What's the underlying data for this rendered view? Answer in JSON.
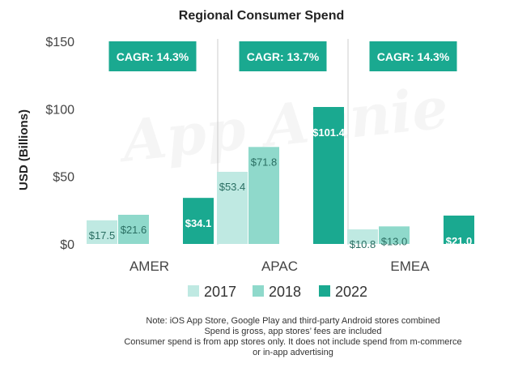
{
  "colors": {
    "2017": "#bfe9e2",
    "2018": "#8fd9cb",
    "2022": "#1aa990",
    "cagr_box": "#1aa990",
    "label_dark": "#2a6e62"
  },
  "watermark": "App Annie",
  "chart_data": {
    "type": "bar",
    "title": "Regional Consumer Spend",
    "xlabel": "",
    "ylabel": "USD (Billions)",
    "ylim": [
      0,
      150
    ],
    "yticks": [
      {
        "value": 0,
        "label": "$0"
      },
      {
        "value": 50,
        "label": "$50"
      },
      {
        "value": 100,
        "label": "$100"
      },
      {
        "value": 150,
        "label": "$150"
      }
    ],
    "categories": [
      "AMER",
      "APAC",
      "EMEA"
    ],
    "series": [
      {
        "name": "2017",
        "values": [
          17.5,
          53.4,
          10.8
        ],
        "labels": [
          "$17.5",
          "$53.4",
          "$10.8"
        ]
      },
      {
        "name": "2018",
        "values": [
          21.6,
          71.8,
          13.0
        ],
        "labels": [
          "$21.6",
          "$71.8",
          "$13.0"
        ]
      },
      {
        "name": "2022",
        "values": [
          34.1,
          101.4,
          21.0
        ],
        "labels": [
          "$34.1",
          "$101.4",
          "$21.0"
        ]
      }
    ],
    "annotations": [
      "CAGR: 14.3%",
      "CAGR: 13.7%",
      "CAGR: 14.3%"
    ],
    "legend_position": "bottom",
    "grid": false
  },
  "notes": [
    "Note: iOS App Store, Google Play and third-party Android stores combined",
    "Spend is gross, app stores’ fees are included",
    "Consumer spend is from app stores only. It does not include spend from m-commerce",
    "or in-app advertising"
  ]
}
